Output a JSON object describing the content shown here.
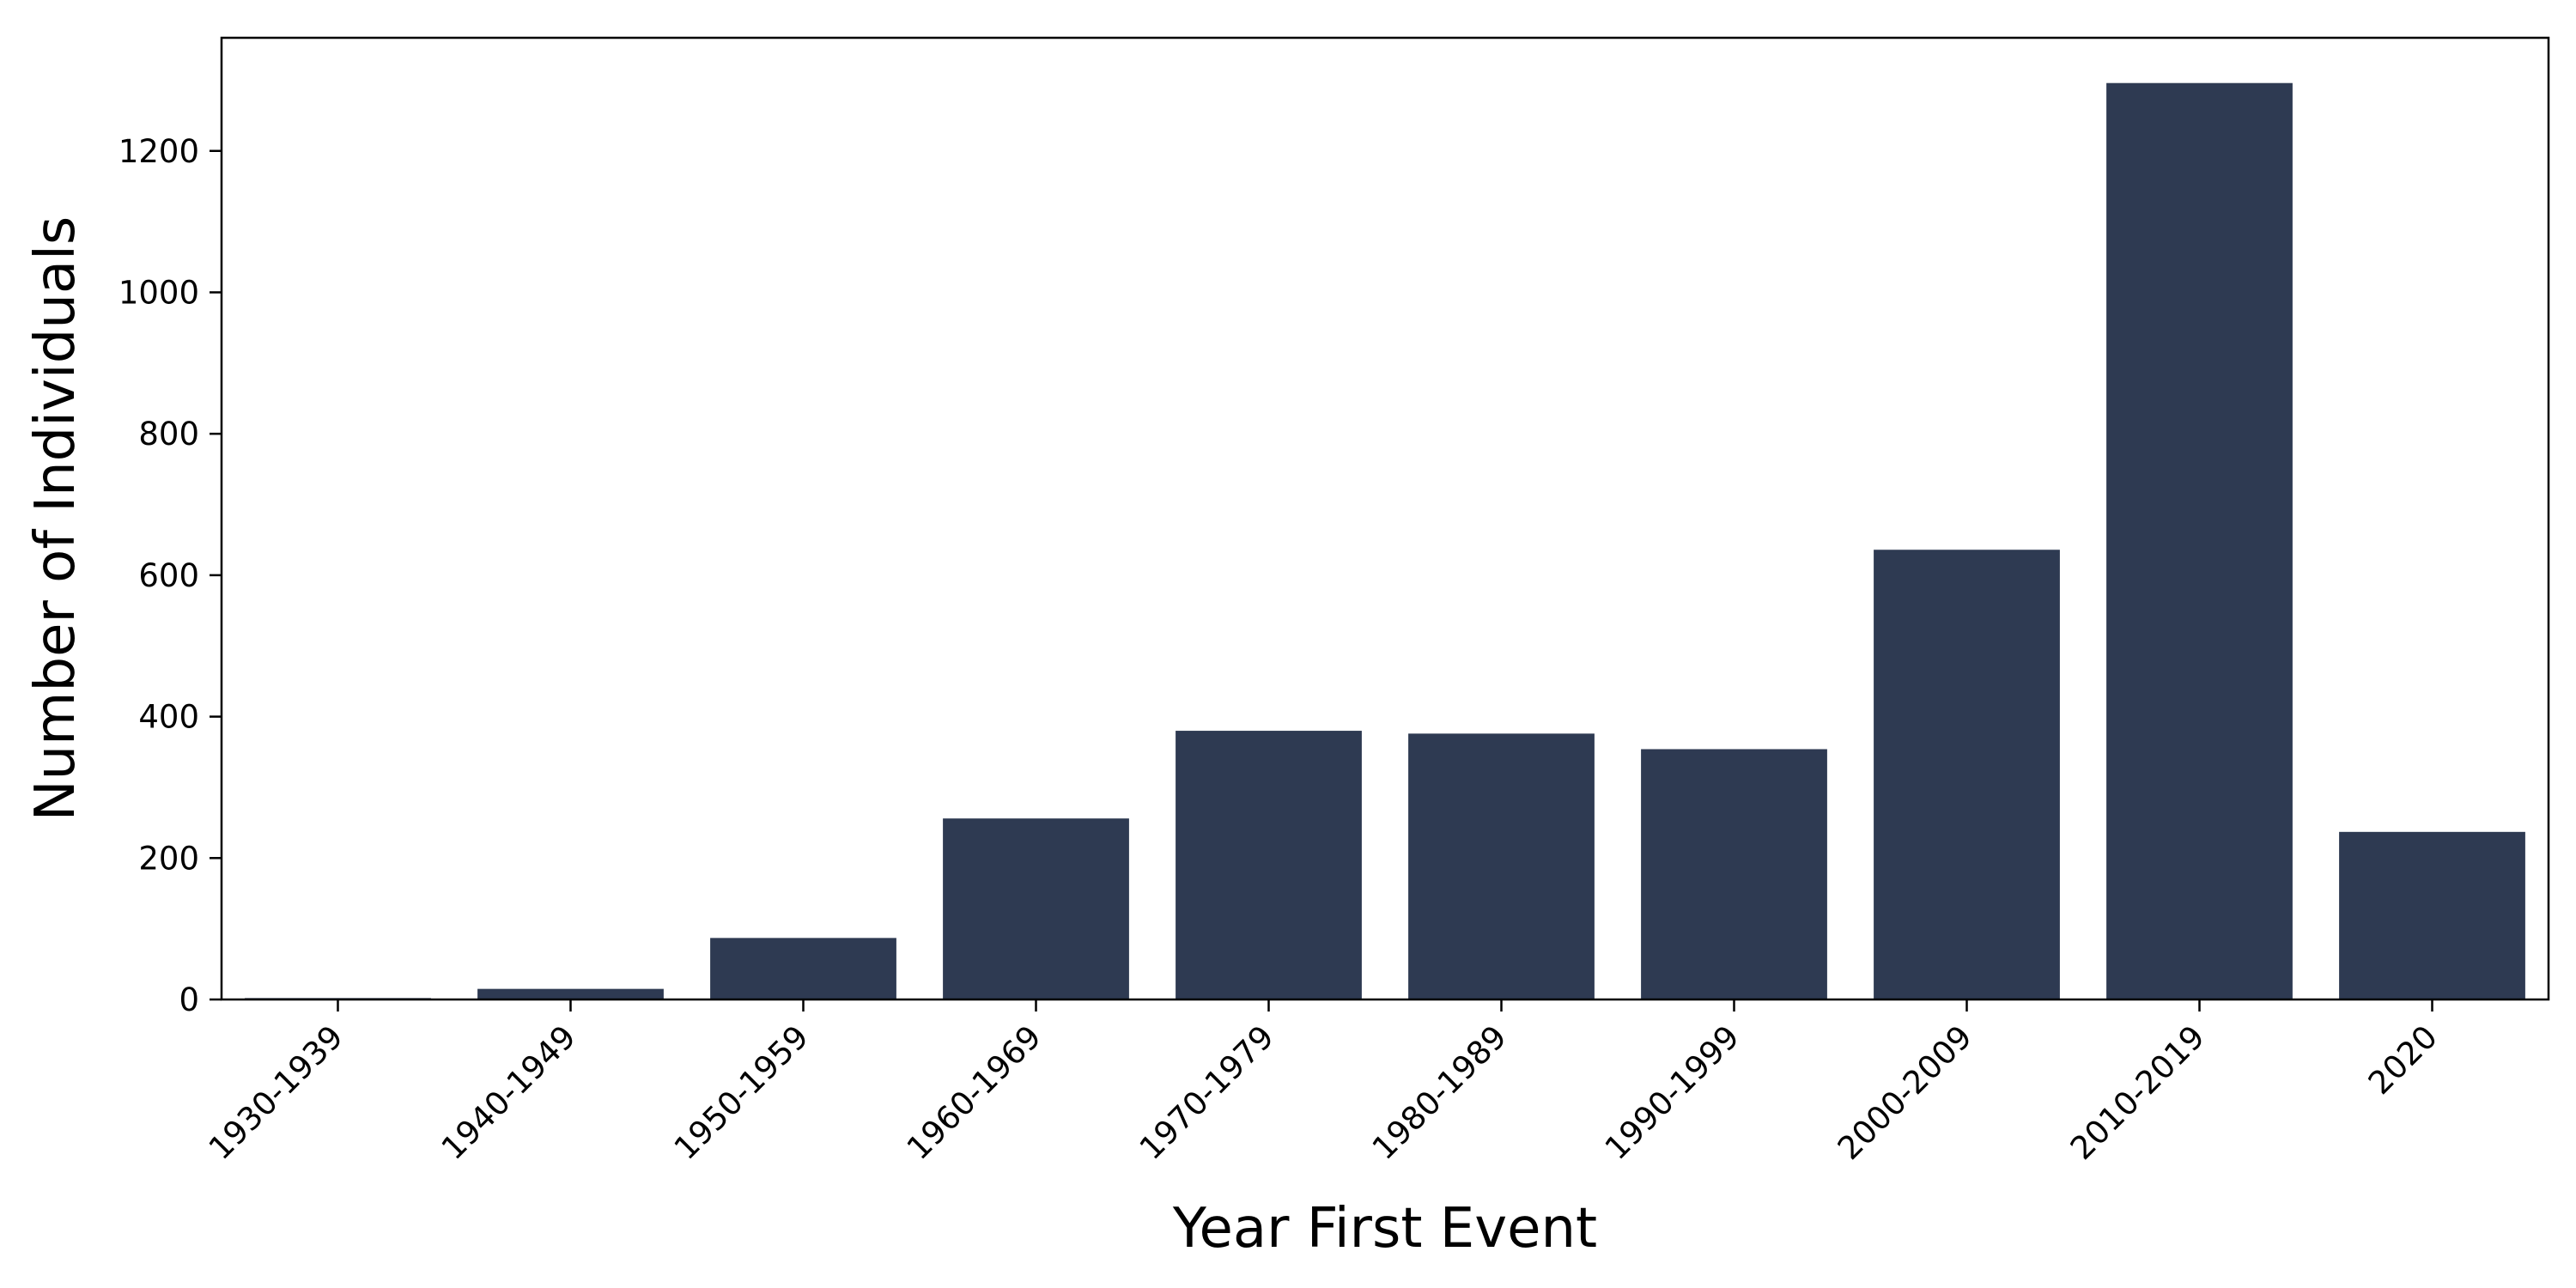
{
  "chart_data": {
    "type": "bar",
    "categories": [
      "1930-1939",
      "1940-1949",
      "1950-1959",
      "1960-1969",
      "1970-1979",
      "1980-1989",
      "1990-1999",
      "2000-2009",
      "2010-2019",
      "2020"
    ],
    "values": [
      2,
      15,
      87,
      256,
      380,
      376,
      354,
      636,
      1296,
      237
    ],
    "xlabel": "Year First Event",
    "ylabel": "Number of Individuals",
    "ylim": [
      0,
      1360
    ],
    "yticks": [
      0,
      200,
      400,
      600,
      800,
      1000,
      1200
    ],
    "ytick_labels": [
      "0",
      "200",
      "400",
      "600",
      "800",
      "1000",
      "1200"
    ],
    "bar_color": "#2e3a52",
    "grid": false,
    "legend": "none"
  }
}
